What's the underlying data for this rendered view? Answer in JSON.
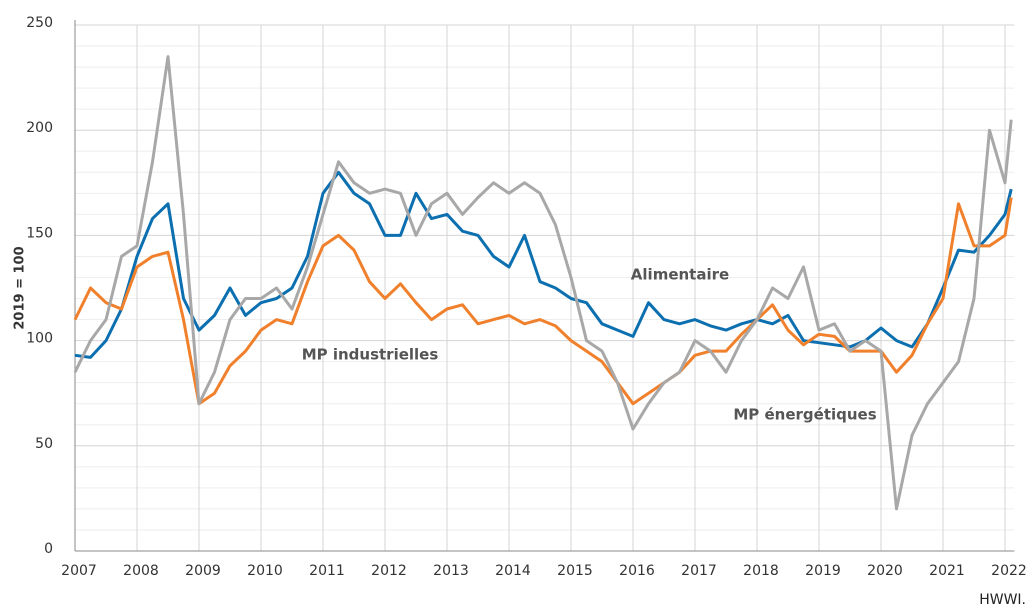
{
  "chart_data": {
    "type": "line",
    "y_label": "2019 = 100",
    "source": "HWWI.",
    "x": [
      2007,
      2007.25,
      2007.5,
      2007.75,
      2008,
      2008.25,
      2008.5,
      2008.75,
      2009,
      2009.25,
      2009.5,
      2009.75,
      2010,
      2010.25,
      2010.5,
      2010.75,
      2011,
      2011.25,
      2011.5,
      2011.75,
      2012,
      2012.25,
      2012.5,
      2012.75,
      2013,
      2013.25,
      2013.5,
      2013.75,
      2014,
      2014.25,
      2014.5,
      2014.75,
      2015,
      2015.25,
      2015.5,
      2015.75,
      2016,
      2016.25,
      2016.5,
      2016.75,
      2017,
      2017.25,
      2017.5,
      2017.75,
      2018,
      2018.25,
      2018.5,
      2018.75,
      2019,
      2019.25,
      2019.5,
      2019.75,
      2020,
      2020.25,
      2020.5,
      2020.75,
      2021,
      2021.25,
      2021.5,
      2021.75,
      2022,
      2022.1
    ],
    "series": [
      {
        "name": "Alimentaire",
        "color": "#0b6fb0",
        "values": [
          93,
          92,
          100,
          115,
          140,
          158,
          165,
          120,
          105,
          112,
          125,
          112,
          118,
          120,
          125,
          140,
          170,
          180,
          170,
          165,
          150,
          150,
          170,
          158,
          160,
          152,
          150,
          140,
          135,
          150,
          128,
          125,
          120,
          118,
          108,
          105,
          102,
          118,
          110,
          108,
          110,
          107,
          105,
          108,
          110,
          108,
          112,
          100,
          99,
          98,
          97,
          100,
          106,
          100,
          97,
          108,
          125,
          143,
          142,
          150,
          160,
          172
        ]
      },
      {
        "name": "MP industrielles",
        "color": "#f0802c",
        "values": [
          110,
          125,
          118,
          115,
          135,
          140,
          142,
          110,
          70,
          75,
          88,
          95,
          105,
          110,
          108,
          128,
          145,
          150,
          143,
          128,
          120,
          127,
          118,
          110,
          115,
          117,
          108,
          110,
          112,
          108,
          110,
          107,
          100,
          95,
          90,
          80,
          70,
          75,
          80,
          85,
          93,
          95,
          95,
          103,
          110,
          117,
          105,
          98,
          103,
          102,
          95,
          95,
          95,
          85,
          93,
          108,
          120,
          165,
          145,
          145,
          150,
          168
        ]
      },
      {
        "name": "MP énergétiques",
        "color": "#a8a8a8",
        "values": [
          85,
          100,
          110,
          140,
          145,
          185,
          235,
          160,
          70,
          85,
          110,
          120,
          120,
          125,
          115,
          135,
          160,
          185,
          175,
          170,
          172,
          170,
          150,
          165,
          170,
          160,
          168,
          175,
          170,
          175,
          170,
          155,
          130,
          100,
          95,
          80,
          58,
          70,
          80,
          85,
          100,
          95,
          85,
          100,
          110,
          125,
          120,
          135,
          105,
          108,
          95,
          100,
          95,
          20,
          55,
          70,
          80,
          90,
          120,
          200,
          175,
          205
        ]
      }
    ],
    "xlim": [
      2007,
      2022.15
    ],
    "xticks": [
      2007,
      2008,
      2009,
      2010,
      2011,
      2012,
      2013,
      2014,
      2015,
      2016,
      2017,
      2018,
      2019,
      2020,
      2021,
      2022
    ],
    "ylim": [
      0,
      250
    ],
    "yticks": [
      0,
      50,
      100,
      150,
      200,
      250
    ],
    "minor_yticks": [
      10,
      20,
      30,
      40,
      60,
      70,
      80,
      90,
      110,
      120,
      130,
      140,
      160,
      170,
      180,
      190,
      210,
      220,
      230,
      240
    ],
    "grid": true
  }
}
